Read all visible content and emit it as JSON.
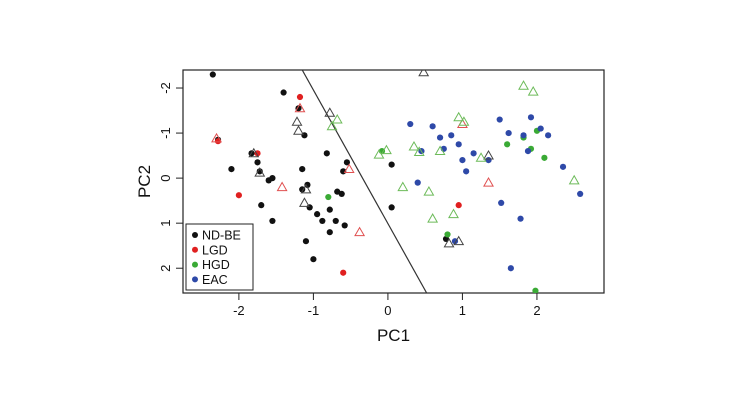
{
  "colors": {
    "ND-BE": "#111111",
    "LGD": "#e02020",
    "HGD": "#3aaa35",
    "EAC": "#2e49a8",
    "NDBE_open": "#444444",
    "LGD_open": "#e05050",
    "HGD_open": "#6dbb5a",
    "EAC_open": "#2e49a8",
    "frame": "#222222"
  },
  "chart_data": {
    "type": "scatter",
    "xlabel": "PC1",
    "ylabel": "PC2",
    "xlim": [
      -2.75,
      2.9
    ],
    "ylim": [
      -2.4,
      2.55
    ],
    "y_axis_inverted": true,
    "x_ticks": [
      -2,
      -1,
      0,
      1,
      2
    ],
    "x_tick_labels": [
      "-2",
      "-1",
      "0",
      "1",
      "2"
    ],
    "y_ticks": [
      -2,
      -1,
      0,
      1,
      2
    ],
    "y_tick_labels": [
      "-2",
      "-1",
      "0",
      "1",
      "2"
    ],
    "legend": {
      "position": "bottom-left",
      "entries": [
        "ND-BE",
        "LGD",
        "HGD",
        "EAC"
      ]
    },
    "separator_line": {
      "x1": -1.15,
      "y1": -2.4,
      "x2": 0.52,
      "y2": 2.55
    },
    "series": [
      {
        "name": "ND-BE",
        "marker": "filled-circle",
        "points": [
          [
            -2.35,
            -2.3
          ],
          [
            -2.28,
            -0.85
          ],
          [
            -2.1,
            -0.2
          ],
          [
            -1.83,
            -0.55
          ],
          [
            -1.75,
            -0.35
          ],
          [
            -1.72,
            -0.15
          ],
          [
            -1.6,
            0.05
          ],
          [
            -1.55,
            0.0
          ],
          [
            -1.4,
            -1.9
          ],
          [
            -1.7,
            0.6
          ],
          [
            -1.55,
            0.95
          ],
          [
            -1.2,
            -1.55
          ],
          [
            -1.12,
            -0.95
          ],
          [
            -1.15,
            -0.2
          ],
          [
            -1.08,
            0.15
          ],
          [
            -1.15,
            0.25
          ],
          [
            -1.05,
            0.65
          ],
          [
            -0.95,
            0.8
          ],
          [
            -0.88,
            0.95
          ],
          [
            -0.78,
            0.7
          ],
          [
            -0.68,
            0.3
          ],
          [
            -0.7,
            0.95
          ],
          [
            -0.62,
            0.35
          ],
          [
            -0.58,
            1.05
          ],
          [
            -0.6,
            -0.15
          ],
          [
            -0.55,
            -0.35
          ],
          [
            -1.1,
            1.4
          ],
          [
            -1.0,
            1.8
          ],
          [
            -0.78,
            1.2
          ],
          [
            -0.82,
            -0.55
          ],
          [
            0.05,
            0.65
          ],
          [
            0.05,
            -0.3
          ],
          [
            0.78,
            1.35
          ]
        ]
      },
      {
        "name": "LGD",
        "marker": "filled-circle",
        "points": [
          [
            -2.28,
            -0.82
          ],
          [
            -2.0,
            0.38
          ],
          [
            -1.75,
            -0.55
          ],
          [
            -1.18,
            -1.8
          ],
          [
            -0.6,
            2.1
          ],
          [
            0.95,
            0.6
          ]
        ]
      },
      {
        "name": "HGD",
        "marker": "filled-circle",
        "points": [
          [
            -0.8,
            0.42
          ],
          [
            -0.08,
            -0.6
          ],
          [
            0.8,
            1.25
          ],
          [
            1.6,
            -0.75
          ],
          [
            1.82,
            -0.9
          ],
          [
            1.92,
            -0.65
          ],
          [
            2.0,
            -1.05
          ],
          [
            2.1,
            -0.45
          ],
          [
            1.98,
            2.5
          ]
        ]
      },
      {
        "name": "EAC",
        "marker": "filled-circle",
        "points": [
          [
            0.3,
            -1.2
          ],
          [
            0.45,
            -0.6
          ],
          [
            0.4,
            0.1
          ],
          [
            0.6,
            -1.15
          ],
          [
            0.7,
            -0.9
          ],
          [
            0.75,
            -0.65
          ],
          [
            0.85,
            -0.95
          ],
          [
            0.95,
            -0.75
          ],
          [
            1.0,
            -0.4
          ],
          [
            1.05,
            -0.15
          ],
          [
            1.15,
            -0.55
          ],
          [
            1.35,
            -0.4
          ],
          [
            1.5,
            -1.3
          ],
          [
            1.62,
            -1.0
          ],
          [
            1.52,
            0.55
          ],
          [
            1.78,
            0.9
          ],
          [
            1.92,
            -1.35
          ],
          [
            2.05,
            -1.1
          ],
          [
            2.15,
            -0.95
          ],
          [
            2.35,
            -0.25
          ],
          [
            2.58,
            0.35
          ],
          [
            1.65,
            2.0
          ],
          [
            1.82,
            -0.95
          ],
          [
            1.88,
            -0.6
          ],
          [
            0.9,
            1.4
          ]
        ]
      },
      {
        "name": "ND-BE",
        "marker": "open-triangle",
        "points": [
          [
            -1.8,
            -0.55
          ],
          [
            -1.72,
            -0.12
          ],
          [
            -1.22,
            -1.25
          ],
          [
            -1.2,
            -1.05
          ],
          [
            -1.1,
            0.25
          ],
          [
            -1.12,
            0.55
          ],
          [
            -0.78,
            -1.45
          ],
          [
            0.48,
            -2.35
          ],
          [
            0.82,
            1.45
          ],
          [
            0.95,
            1.4
          ],
          [
            1.35,
            -0.5
          ]
        ]
      },
      {
        "name": "LGD",
        "marker": "open-triangle",
        "points": [
          [
            -2.3,
            -0.88
          ],
          [
            -1.18,
            -1.55
          ],
          [
            -1.42,
            0.2
          ],
          [
            -0.52,
            -0.2
          ],
          [
            -0.38,
            1.2
          ],
          [
            1.0,
            -1.2
          ],
          [
            1.35,
            0.1
          ]
        ]
      },
      {
        "name": "HGD",
        "marker": "open-triangle",
        "points": [
          [
            -0.75,
            -1.15
          ],
          [
            -0.68,
            -1.3
          ],
          [
            -0.12,
            -0.52
          ],
          [
            -0.02,
            -0.62
          ],
          [
            0.2,
            0.2
          ],
          [
            0.35,
            -0.7
          ],
          [
            0.42,
            -0.58
          ],
          [
            0.55,
            0.3
          ],
          [
            0.6,
            0.9
          ],
          [
            0.7,
            -0.6
          ],
          [
            0.88,
            0.8
          ],
          [
            0.95,
            -1.35
          ],
          [
            1.02,
            -1.25
          ],
          [
            1.25,
            -0.45
          ],
          [
            1.82,
            -2.05
          ],
          [
            1.95,
            -1.92
          ],
          [
            2.5,
            0.05
          ]
        ]
      }
    ]
  }
}
